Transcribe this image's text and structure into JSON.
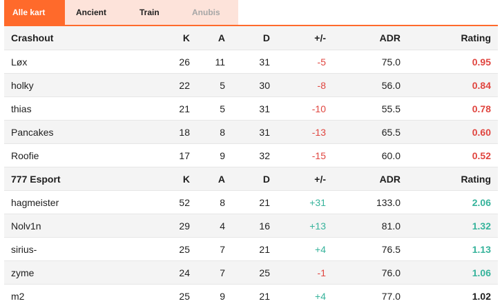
{
  "tabs": [
    {
      "label": "Alle kart",
      "state": "active"
    },
    {
      "label": "Ancient",
      "state": "normal"
    },
    {
      "label": "Train",
      "state": "normal"
    },
    {
      "label": "Anubis",
      "state": "disabled"
    }
  ],
  "columns": {
    "k": "K",
    "a": "A",
    "d": "D",
    "plus_minus": "+/-",
    "adr": "ADR",
    "rating": "Rating"
  },
  "colors": {
    "accent": "#ff6a2b",
    "tab_bg": "#fde3da",
    "negative": "#e0453f",
    "positive": "#36b39b"
  },
  "teams": [
    {
      "name": "Crashout",
      "players": [
        {
          "name": "Løx",
          "k": "26",
          "a": "11",
          "d": "31",
          "pm": "-5",
          "adr": "75.0",
          "rating": "0.95",
          "tone": "neg"
        },
        {
          "name": "holky",
          "k": "22",
          "a": "5",
          "d": "30",
          "pm": "-8",
          "adr": "56.0",
          "rating": "0.84",
          "tone": "neg"
        },
        {
          "name": "thias",
          "k": "21",
          "a": "5",
          "d": "31",
          "pm": "-10",
          "adr": "55.5",
          "rating": "0.78",
          "tone": "neg"
        },
        {
          "name": "Pancakes",
          "k": "18",
          "a": "8",
          "d": "31",
          "pm": "-13",
          "adr": "65.5",
          "rating": "0.60",
          "tone": "neg"
        },
        {
          "name": "Roofie",
          "k": "17",
          "a": "9",
          "d": "32",
          "pm": "-15",
          "adr": "60.0",
          "rating": "0.52",
          "tone": "neg"
        }
      ]
    },
    {
      "name": "777 Esport",
      "players": [
        {
          "name": "hagmeister",
          "k": "52",
          "a": "8",
          "d": "21",
          "pm": "+31",
          "adr": "133.0",
          "rating": "2.06",
          "tone": "pos"
        },
        {
          "name": "Nolv1n",
          "k": "29",
          "a": "4",
          "d": "16",
          "pm": "+13",
          "adr": "81.0",
          "rating": "1.32",
          "tone": "pos"
        },
        {
          "name": "sirius-",
          "k": "25",
          "a": "7",
          "d": "21",
          "pm": "+4",
          "adr": "76.5",
          "rating": "1.13",
          "tone": "pos"
        },
        {
          "name": "zyme",
          "k": "24",
          "a": "7",
          "d": "25",
          "pm": "-1",
          "adr": "76.0",
          "rating": "1.06",
          "tone": "mixed"
        },
        {
          "name": "m2",
          "k": "25",
          "a": "9",
          "d": "21",
          "pm": "+4",
          "adr": "77.0",
          "rating": "1.02",
          "tone": "mixed2"
        }
      ]
    }
  ]
}
